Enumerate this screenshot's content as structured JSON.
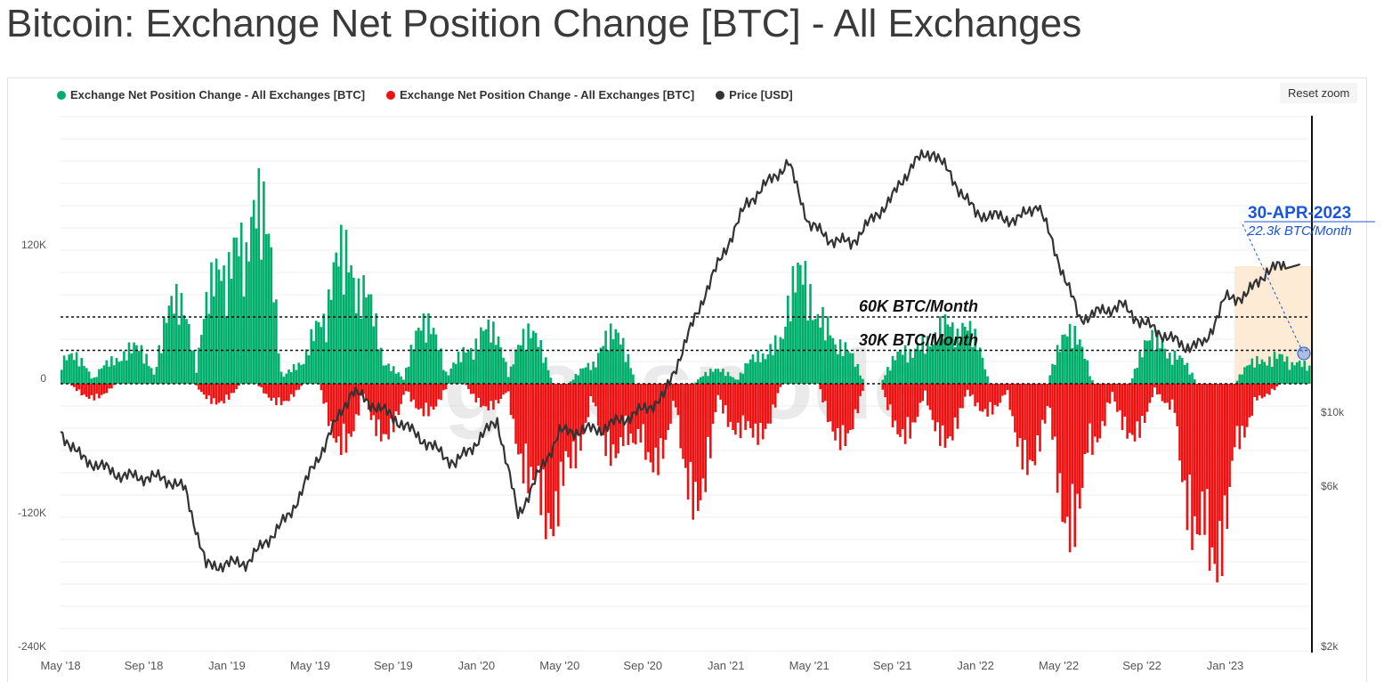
{
  "page": {
    "title": "Bitcoin: Exchange Net Position Change [BTC] - All Exchanges",
    "reset_zoom_label": "Reset zoom",
    "watermark": "glassnode"
  },
  "legend": [
    {
      "label": "Exchange Net Position Change - All Exchanges [BTC]",
      "color": "#00ae6b"
    },
    {
      "label": "Exchange Net Position Change - All Exchanges [BTC]",
      "color": "#ee1111"
    },
    {
      "label": "Price [USD]",
      "color": "#333333"
    }
  ],
  "annotations": {
    "line_60k": "60K BTC/Month",
    "line_30k": "30K BTC/Month",
    "callout_date": "30-APR-2023",
    "callout_value": "22.3k BTC/Month",
    "accent_color": "#1a56db",
    "highlight_color": "#fde7cf"
  },
  "chart_data": {
    "type": "area",
    "x_ticks": [
      "May '18",
      "Sep '18",
      "Jan '19",
      "May '19",
      "Sep '19",
      "Jan '20",
      "May '20",
      "Sep '20",
      "Jan '21",
      "May '21",
      "Sep '21",
      "Jan '22",
      "May '22",
      "Sep '22",
      "Jan '23"
    ],
    "y_left_ticks": [
      "120K",
      "0",
      "-120K",
      "-240K"
    ],
    "y_left_ticks_values": [
      120000,
      0,
      -120000,
      -240000
    ],
    "y_right_ticks": [
      "$10k",
      "$6k",
      "$2k"
    ],
    "ylim_left": [
      -240000,
      240000
    ],
    "x_range": [
      "2018-05-01",
      "2023-05-01"
    ],
    "reference_lines": [
      {
        "label": "60K BTC/Month",
        "value": 60000
      },
      {
        "label": "30K BTC/Month",
        "value": 30000
      }
    ],
    "series": [
      {
        "name": "Exchange Net Position Change - All Exchanges [BTC]",
        "color": "#00ae6b",
        "note": "positive values",
        "x": [
          "2018-05",
          "2018-07",
          "2018-08",
          "2018-10",
          "2018-12",
          "2019-01",
          "2019-02",
          "2019-04",
          "2019-05",
          "2019-06",
          "2019-07",
          "2019-08",
          "2019-10",
          "2019-12",
          "2020-01",
          "2020-03",
          "2020-06",
          "2020-07",
          "2020-12",
          "2021-02",
          "2021-03",
          "2021-04",
          "2021-05",
          "2021-06",
          "2021-09",
          "2021-10",
          "2021-11",
          "2021-12",
          "2022-05",
          "2022-09",
          "2022-10",
          "2023-02",
          "2023-03",
          "2023-04"
        ],
        "values": [
          30000,
          25000,
          40000,
          90000,
          120000,
          150000,
          195000,
          20000,
          65000,
          145000,
          100000,
          20000,
          65000,
          35000,
          60000,
          55000,
          20000,
          55000,
          15000,
          30000,
          45000,
          120000,
          70000,
          40000,
          35000,
          45000,
          65000,
          60000,
          55000,
          50000,
          30000,
          25000,
          30000,
          22300
        ]
      },
      {
        "name": "Exchange Net Position Change - All Exchanges [BTC]",
        "color": "#ee1111",
        "note": "negative values",
        "x": [
          "2018-06",
          "2018-12",
          "2019-03",
          "2019-06",
          "2019-08",
          "2019-10",
          "2020-01",
          "2020-03",
          "2020-04",
          "2020-05",
          "2020-07",
          "2020-08",
          "2020-09",
          "2020-11",
          "2021-01",
          "2021-02",
          "2021-06",
          "2021-09",
          "2021-11",
          "2022-01",
          "2022-03",
          "2022-05",
          "2022-06",
          "2022-08",
          "2022-10",
          "2022-11",
          "2022-12",
          "2023-01",
          "2023-02"
        ],
        "values": [
          -15000,
          -20000,
          -20000,
          -65000,
          -55000,
          -30000,
          -25000,
          -100000,
          -150000,
          -80000,
          -75000,
          -60000,
          -85000,
          -125000,
          -50000,
          -55000,
          -60000,
          -55000,
          -60000,
          -30000,
          -85000,
          -155000,
          -65000,
          -55000,
          -25000,
          -155000,
          -190000,
          -60000,
          -15000
        ]
      },
      {
        "name": "Price [USD]",
        "color": "#333333",
        "x": [
          "2018-05",
          "2018-06",
          "2018-08",
          "2018-10",
          "2018-11",
          "2018-12",
          "2019-02",
          "2019-04",
          "2019-06",
          "2019-07",
          "2019-09",
          "2019-11",
          "2019-12",
          "2020-02",
          "2020-03",
          "2020-05",
          "2020-07",
          "2020-09",
          "2020-10",
          "2020-12",
          "2021-01",
          "2021-02",
          "2021-04",
          "2021-05",
          "2021-06",
          "2021-07",
          "2021-09",
          "2021-10",
          "2021-11",
          "2022-01",
          "2022-03",
          "2022-04",
          "2022-05",
          "2022-06",
          "2022-08",
          "2022-09",
          "2022-11",
          "2022-12",
          "2023-01",
          "2023-02",
          "2023-03",
          "2023-04"
        ],
        "values": [
          9000,
          7500,
          6600,
          6500,
          6000,
          3500,
          3600,
          5000,
          9000,
          12000,
          10000,
          8000,
          7200,
          9800,
          5000,
          9000,
          9200,
          10500,
          11500,
          24000,
          33000,
          45000,
          60000,
          39000,
          35000,
          34000,
          47000,
          60000,
          65000,
          42000,
          40000,
          45000,
          30000,
          20000,
          22000,
          19500,
          16500,
          16700,
          23000,
          23500,
          28000,
          29300
        ]
      }
    ]
  }
}
